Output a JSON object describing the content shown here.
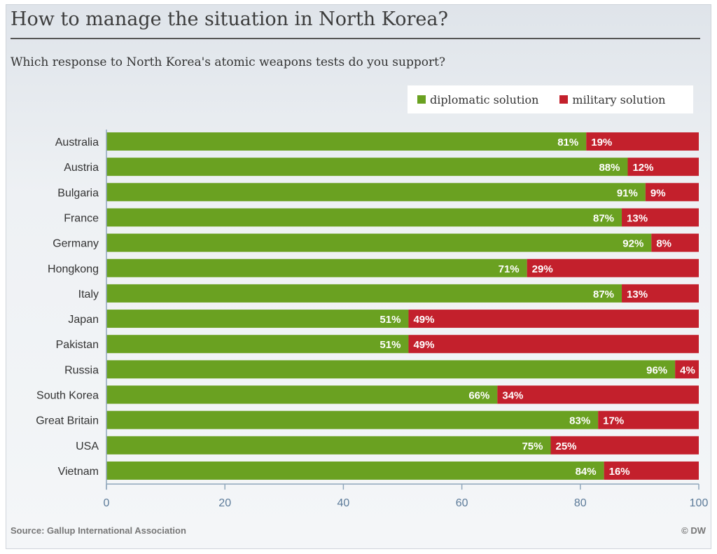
{
  "header": {
    "title": "How to manage the situation in North Korea?",
    "subtitle": "Which response to North Korea's atomic weapons tests do you support?"
  },
  "legend": {
    "items": [
      {
        "label": "diplomatic solution",
        "color": "#6aa121"
      },
      {
        "label": "military solution",
        "color": "#c3202c"
      }
    ]
  },
  "footer": {
    "source": "Source: Gallup International Association",
    "credit": "© DW"
  },
  "chart_data": {
    "type": "bar",
    "orientation": "horizontal",
    "stacked": true,
    "categories": [
      "Australia",
      "Austria",
      "Bulgaria",
      "France",
      "Germany",
      "Hongkong",
      "Italy",
      "Japan",
      "Pakistan",
      "Russia",
      "South Korea",
      "Great Britain",
      "USA",
      "Vietnam"
    ],
    "series": [
      {
        "name": "diplomatic solution",
        "color": "#6aa121",
        "values": [
          81,
          88,
          91,
          87,
          92,
          71,
          87,
          51,
          51,
          96,
          66,
          83,
          75,
          84
        ]
      },
      {
        "name": "military solution",
        "color": "#c3202c",
        "values": [
          19,
          12,
          9,
          13,
          8,
          29,
          13,
          49,
          49,
          4,
          34,
          17,
          25,
          16
        ]
      }
    ],
    "data_label_suffix": "%",
    "xlim": [
      0,
      100
    ],
    "xticks": [
      0,
      20,
      40,
      60,
      80,
      100
    ],
    "grid": false,
    "legend_position": "top-right"
  }
}
